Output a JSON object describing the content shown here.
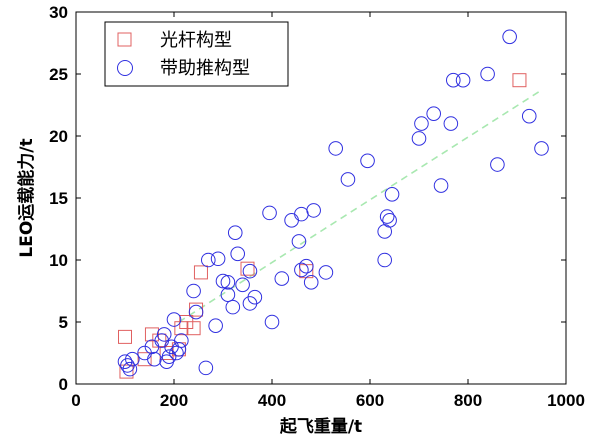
{
  "chart_data": {
    "type": "scatter",
    "xlabel": "起飞重量/t",
    "ylabel": "LEO运载能力/t",
    "xlim": [
      0,
      1000
    ],
    "ylim": [
      0,
      30
    ],
    "xticks": [
      0,
      200,
      400,
      600,
      800,
      1000
    ],
    "yticks": [
      0,
      5,
      10,
      15,
      20,
      25,
      30
    ],
    "grid": false,
    "legend_position": "top-left",
    "series": [
      {
        "name": "光杆构型",
        "marker": "square",
        "color": "#e06060",
        "points": [
          [
            100,
            3.8
          ],
          [
            103,
            1.0
          ],
          [
            140,
            2.0
          ],
          [
            155,
            4.0
          ],
          [
            170,
            3.5
          ],
          [
            185,
            2.5
          ],
          [
            210,
            2.8
          ],
          [
            215,
            4.5
          ],
          [
            225,
            5.0
          ],
          [
            240,
            4.5
          ],
          [
            245,
            6.0
          ],
          [
            255,
            9.0
          ],
          [
            350,
            9.3
          ],
          [
            470,
            9.1
          ],
          [
            905,
            24.5
          ]
        ]
      },
      {
        "name": "带助推构型",
        "marker": "circle",
        "color": "#3030e0",
        "points": [
          [
            100,
            1.8
          ],
          [
            105,
            1.5
          ],
          [
            110,
            1.2
          ],
          [
            115,
            2.0
          ],
          [
            140,
            2.5
          ],
          [
            155,
            3.0
          ],
          [
            160,
            2.0
          ],
          [
            175,
            3.5
          ],
          [
            180,
            4.0
          ],
          [
            185,
            1.8
          ],
          [
            190,
            2.2
          ],
          [
            195,
            3.0
          ],
          [
            200,
            5.2
          ],
          [
            205,
            2.5
          ],
          [
            210,
            2.8
          ],
          [
            215,
            3.5
          ],
          [
            240,
            7.5
          ],
          [
            245,
            5.8
          ],
          [
            265,
            1.3
          ],
          [
            270,
            10.0
          ],
          [
            285,
            4.7
          ],
          [
            290,
            10.1
          ],
          [
            300,
            8.3
          ],
          [
            310,
            8.2
          ],
          [
            310,
            7.2
          ],
          [
            320,
            6.2
          ],
          [
            325,
            12.2
          ],
          [
            330,
            10.5
          ],
          [
            340,
            8.0
          ],
          [
            355,
            9.1
          ],
          [
            355,
            6.5
          ],
          [
            365,
            7.0
          ],
          [
            395,
            13.8
          ],
          [
            400,
            5.0
          ],
          [
            420,
            8.5
          ],
          [
            440,
            13.2
          ],
          [
            455,
            11.5
          ],
          [
            460,
            13.7
          ],
          [
            460,
            9.2
          ],
          [
            470,
            9.5
          ],
          [
            480,
            8.2
          ],
          [
            485,
            14.0
          ],
          [
            510,
            9.0
          ],
          [
            530,
            19.0
          ],
          [
            555,
            16.5
          ],
          [
            595,
            18.0
          ],
          [
            630,
            10.0
          ],
          [
            630,
            12.3
          ],
          [
            635,
            13.5
          ],
          [
            640,
            13.2
          ],
          [
            645,
            15.3
          ],
          [
            700,
            19.8
          ],
          [
            705,
            21.0
          ],
          [
            730,
            21.8
          ],
          [
            745,
            16.0
          ],
          [
            765,
            21.0
          ],
          [
            770,
            24.5
          ],
          [
            790,
            24.5
          ],
          [
            840,
            25.0
          ],
          [
            860,
            17.7
          ],
          [
            885,
            28.0
          ],
          [
            925,
            21.6
          ],
          [
            950,
            19.0
          ]
        ]
      }
    ],
    "trendline": {
      "style": "dashed",
      "color": "#a8e8b0",
      "from": [
        210,
        5.0
      ],
      "to": [
        950,
        23.7
      ]
    }
  }
}
